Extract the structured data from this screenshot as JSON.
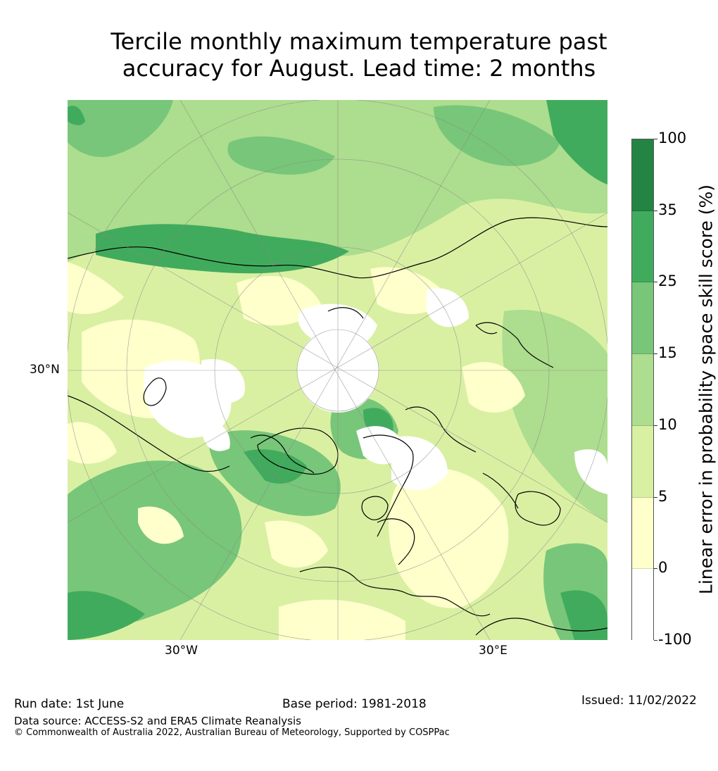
{
  "title_line1": "Tercile monthly maximum temperature past",
  "title_line2": "accuracy for August. Lead time: 2 months",
  "map": {
    "lat_label": "30°N",
    "lon_labels": [
      "30°W",
      "30°E"
    ],
    "colors": {
      "land_outline": "#000000",
      "graticule": "#888888"
    }
  },
  "colorbar": {
    "label": "Linear error in probability space skill score (%)",
    "ticks": [
      "100",
      "35",
      "25",
      "15",
      "10",
      "5",
      "0",
      "-100"
    ],
    "bins": [
      {
        "range": "35–100",
        "color": "#238443"
      },
      {
        "range": "25–35",
        "color": "#41ab5d"
      },
      {
        "range": "15–25",
        "color": "#78c679"
      },
      {
        "range": "10–15",
        "color": "#addd8e"
      },
      {
        "range": "5–10",
        "color": "#d9f0a3"
      },
      {
        "range": "0–5",
        "color": "#ffffcc"
      },
      {
        "range": "-100–0",
        "color": "#ffffff"
      }
    ]
  },
  "footer": {
    "run_date": "Run date: 1st June",
    "base_period": "Base period: 1981-2018",
    "issued": "Issued: 11/02/2022",
    "data_source": "Data source: ACCESS-S2 and ERA5 Climate Reanalysis",
    "copyright": "© Commonwealth of Australia 2022, Australian Bureau of Meteorology, Supported by COSPPac"
  }
}
